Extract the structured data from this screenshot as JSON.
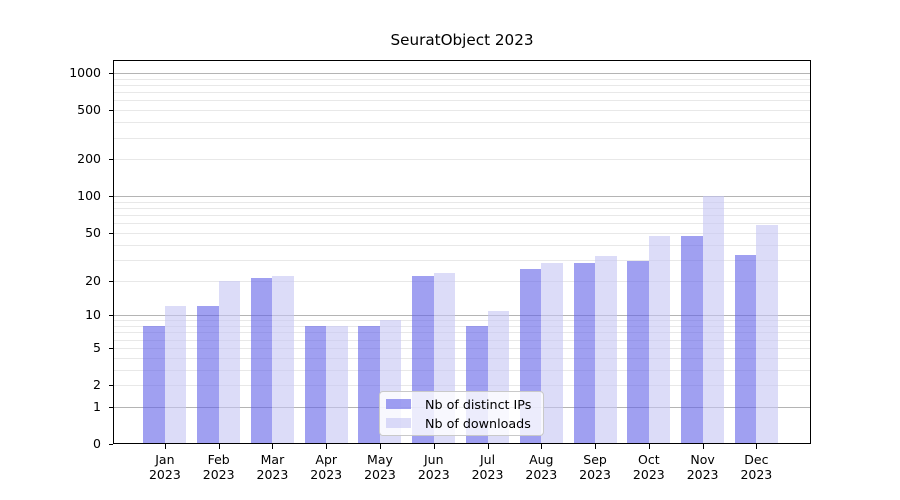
{
  "chart_data": {
    "type": "bar",
    "title": "SeuratObject 2023",
    "categories": [
      "Jan",
      "Feb",
      "Mar",
      "Apr",
      "May",
      "Jun",
      "Jul",
      "Aug",
      "Sep",
      "Oct",
      "Nov",
      "Dec"
    ],
    "year_line": "2023",
    "series": [
      {
        "name": "Nb of distinct IPs",
        "color": "#6161e8",
        "alpha": 0.6,
        "values": [
          8,
          12,
          21,
          8,
          8,
          22,
          8,
          25,
          28,
          29,
          47,
          33
        ]
      },
      {
        "name": "Nb of downloads",
        "color": "#c5c5f3",
        "alpha": 0.6,
        "values": [
          12,
          20,
          22,
          8,
          9,
          23,
          11,
          28,
          32,
          47,
          101,
          58
        ]
      }
    ],
    "yaxis": {
      "scale": "log10(1+x)",
      "tick_values": [
        0,
        1,
        2,
        5,
        10,
        20,
        50,
        100,
        200,
        500,
        1000
      ],
      "major_grid_values": [
        1,
        10,
        100,
        1000
      ],
      "minor_grid": "2-9 per decade",
      "ylim": [
        0,
        1200
      ]
    },
    "xlabel": "",
    "ylabel": "",
    "grid": true,
    "legend": {
      "location": "lower center"
    },
    "colors": {
      "major_grid": "#b4b4b4",
      "minor_grid": "#e8e8e8",
      "spine": "#000000",
      "text": "#000000",
      "background": "#ffffff"
    }
  }
}
